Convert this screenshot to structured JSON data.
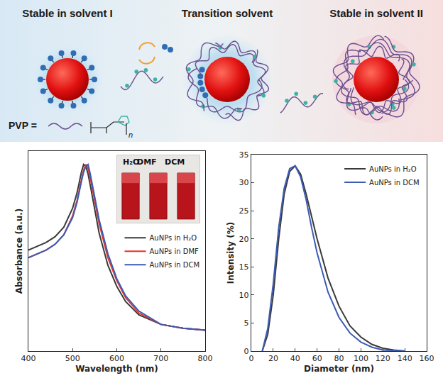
{
  "diagram": {
    "labels": [
      "Stable in solvent I",
      "Transition solvent",
      "Stable in solvent II"
    ],
    "pvp_label": "PVP =",
    "pvp_repeat": "n"
  },
  "chart_data": [
    {
      "type": "line",
      "x_label": "Wavelength (nm)",
      "y_label": "Absorbance (a.u.)",
      "x": [
        400,
        420,
        440,
        460,
        480,
        500,
        510,
        520,
        525,
        530,
        535,
        540,
        550,
        560,
        580,
        600,
        620,
        650,
        700,
        750,
        800
      ],
      "series": [
        {
          "name": "AuNPs in H₂O",
          "color": "#3a3a3a",
          "values": [
            0.53,
            0.55,
            0.57,
            0.6,
            0.65,
            0.75,
            0.83,
            0.94,
            0.98,
            0.97,
            0.93,
            0.87,
            0.74,
            0.62,
            0.45,
            0.34,
            0.26,
            0.19,
            0.14,
            0.12,
            0.11
          ]
        },
        {
          "name": "AuNPs in DMF",
          "color": "#e8332a",
          "values": [
            0.49,
            0.51,
            0.53,
            0.56,
            0.61,
            0.71,
            0.79,
            0.9,
            0.95,
            0.98,
            0.96,
            0.91,
            0.79,
            0.67,
            0.49,
            0.37,
            0.28,
            0.2,
            0.14,
            0.12,
            0.11
          ]
        },
        {
          "name": "AuNPs in DCM",
          "color": "#3b5bb5",
          "values": [
            0.49,
            0.51,
            0.53,
            0.56,
            0.61,
            0.7,
            0.78,
            0.89,
            0.94,
            0.97,
            0.98,
            0.93,
            0.81,
            0.69,
            0.51,
            0.38,
            0.29,
            0.21,
            0.14,
            0.12,
            0.11
          ]
        }
      ],
      "xlim": [
        400,
        800
      ],
      "xticks": [
        400,
        500,
        600,
        700,
        800
      ],
      "ylim": [
        0,
        1.05
      ],
      "tick_labels": "x",
      "legend": "right",
      "inset": {
        "labels": [
          "H₂O",
          "DMF",
          "DCM"
        ]
      }
    },
    {
      "type": "line",
      "x_label": "Diameter (nm)",
      "y_label": "Intensity (%)",
      "x": [
        10,
        15,
        20,
        25,
        30,
        35,
        40,
        45,
        50,
        55,
        60,
        70,
        80,
        90,
        100,
        110,
        120,
        130,
        140
      ],
      "series": [
        {
          "name": "AuNPs in H₂O",
          "color": "#3a3a3a",
          "values": [
            0,
            3,
            10,
            20,
            28,
            32,
            33,
            31.5,
            28,
            24,
            20,
            13,
            8,
            4.5,
            2.5,
            1.2,
            0.5,
            0.2,
            0
          ]
        },
        {
          "name": "AuNPs in DCM",
          "color": "#3b5bb5",
          "values": [
            0,
            4,
            12,
            22,
            29,
            32.5,
            33,
            31,
            27,
            22,
            17.5,
            10.5,
            6,
            3.2,
            1.6,
            0.7,
            0.2,
            0.1,
            0
          ]
        }
      ],
      "xlim": [
        0,
        160
      ],
      "xticks": [
        0,
        20,
        40,
        60,
        80,
        100,
        120,
        140,
        160
      ],
      "ylim": [
        0,
        35
      ],
      "yticks": [
        0,
        5,
        10,
        15,
        20,
        25,
        30,
        35
      ],
      "legend": "upper right"
    }
  ]
}
